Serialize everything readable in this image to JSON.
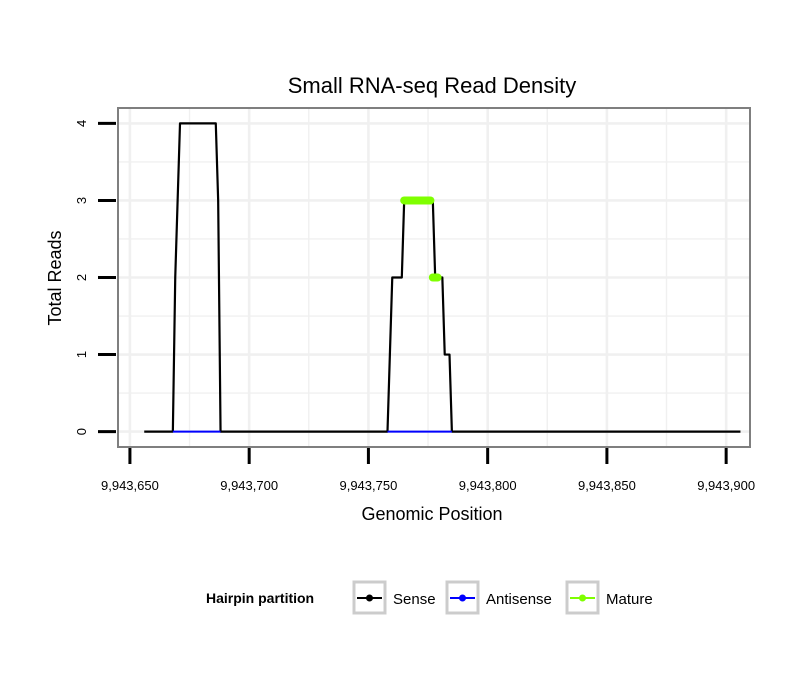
{
  "chart_data": {
    "type": "line",
    "title": "Small RNA-seq Read Density",
    "xlabel": "Genomic Position",
    "ylabel": "Total Reads",
    "xlim": [
      9943645,
      9943910
    ],
    "ylim": [
      -0.2,
      4.2
    ],
    "grid": true,
    "x_ticks": [
      9943650,
      9943700,
      9943750,
      9943800,
      9943850,
      9943900
    ],
    "x_tick_labels": [
      "9,943,650",
      "9,943,700",
      "9,943,750",
      "9,943,800",
      "9,943,850",
      "9,943,900"
    ],
    "y_ticks": [
      0,
      1,
      2,
      3,
      4
    ],
    "y_tick_labels": [
      "0",
      "1",
      "2",
      "3",
      "4"
    ],
    "legend": {
      "title": "Hairpin partition",
      "placement": "bottom",
      "entries": [
        {
          "name": "Sense",
          "color": "#000000"
        },
        {
          "name": "Antisense",
          "color": "#0000ff"
        },
        {
          "name": "Mature",
          "color": "#7fff00"
        }
      ]
    },
    "series": [
      {
        "name": "Sense",
        "color": "#000000",
        "x": [
          9943656,
          9943668,
          9943669,
          9943670,
          9943671,
          9943672,
          9943685,
          9943686,
          9943687,
          9943688,
          9943758,
          9943759,
          9943760,
          9943761,
          9943762,
          9943763,
          9943764,
          9943765,
          9943776,
          9943777,
          9943778,
          9943779,
          9943780,
          9943781,
          9943782,
          9943783,
          9943784,
          9943785,
          9943906
        ],
        "y": [
          0,
          0,
          2,
          3,
          4,
          4,
          4,
          4,
          3,
          0,
          0,
          1,
          2,
          2,
          2,
          2,
          2,
          3,
          3,
          3,
          2,
          2,
          2,
          2,
          1,
          1,
          1,
          0,
          0
        ]
      },
      {
        "name": "Antisense",
        "color": "#0000ff",
        "x": [
          9943668,
          9943688,
          9943758,
          9943785
        ],
        "y": [
          0,
          0,
          0,
          0
        ],
        "segments": [
          [
            9943668,
            9943688
          ],
          [
            9943758,
            9943785
          ]
        ]
      },
      {
        "name": "Mature",
        "color": "#7fff00",
        "x": [
          9943765,
          9943776,
          9943777,
          9943779
        ],
        "y": [
          3,
          3,
          2,
          2
        ],
        "segments": [
          [
            9943765,
            9943776,
            3
          ],
          [
            9943777,
            9943779,
            2
          ]
        ]
      }
    ]
  }
}
